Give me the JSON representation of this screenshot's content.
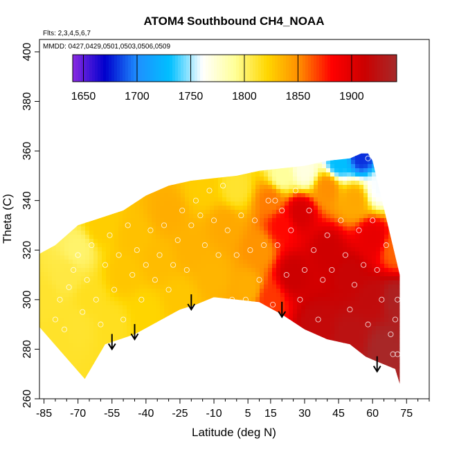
{
  "chart_data": {
    "type": "heatmap",
    "title": "ATOM4 Southbound CH4_NOAA",
    "subtitle_flights": "Flts: 2,3,4,5,6,7",
    "subtitle_dates": "MMDD: 0427,0429,0501,0503,0506,0509",
    "xlabel": "Latitude (deg N)",
    "ylabel": "Theta (C)",
    "xlim": [
      -87,
      85
    ],
    "ylim": [
      260,
      405
    ],
    "x_ticks": [
      -85,
      -70,
      -55,
      -40,
      -25,
      -10,
      5,
      15,
      30,
      45,
      60,
      75
    ],
    "x_tick_labels": [
      "-85",
      "-70",
      "-55",
      "-40",
      "-25",
      "-10",
      "5",
      "15",
      "30",
      "45",
      "60",
      "75"
    ],
    "y_ticks": [
      260,
      280,
      300,
      320,
      340,
      360,
      380,
      400
    ],
    "y_tick_labels": [
      "260",
      "280",
      "300",
      "320",
      "340",
      "360",
      "380",
      "400"
    ],
    "grid": false,
    "colorbar": {
      "range": [
        1640,
        1942
      ],
      "ticks": [
        1650,
        1700,
        1750,
        1800,
        1850,
        1900
      ],
      "tick_labels": [
        "1650",
        "1700",
        "1750",
        "1800",
        "1850",
        "1900"
      ],
      "colors": [
        "#8a2be2",
        "#0000cd",
        "#1e90ff",
        "#00bfff",
        "#ffffff",
        "#ffff99",
        "#ffd700",
        "#ff8c00",
        "#ff0000",
        "#cc0000",
        "#a52a2a"
      ],
      "placement": "top-inside"
    },
    "domain_lower_boundary": [
      [
        -67,
        268
      ],
      [
        -58,
        282
      ],
      [
        -45,
        286
      ],
      [
        -35,
        291
      ],
      [
        -25,
        296
      ],
      [
        -18,
        298
      ],
      [
        -10,
        301
      ],
      [
        0,
        300
      ],
      [
        10,
        299
      ],
      [
        20,
        294
      ],
      [
        30,
        288
      ],
      [
        40,
        284
      ],
      [
        50,
        282
      ],
      [
        57,
        277
      ],
      [
        62,
        275
      ],
      [
        70,
        272
      ],
      [
        72,
        266
      ]
    ],
    "domain_upper_boundary": [
      [
        -88,
        290
      ],
      [
        -88,
        318
      ],
      [
        -80,
        322
      ],
      [
        -70,
        330
      ],
      [
        -60,
        333
      ],
      [
        -50,
        336
      ],
      [
        -40,
        342
      ],
      [
        -30,
        346
      ],
      [
        -20,
        348
      ],
      [
        -10,
        349
      ],
      [
        0,
        350
      ],
      [
        10,
        352
      ],
      [
        20,
        353
      ],
      [
        30,
        354
      ],
      [
        40,
        356
      ],
      [
        50,
        357
      ],
      [
        55,
        359
      ],
      [
        58,
        359
      ],
      [
        60,
        356
      ],
      [
        72,
        310
      ],
      [
        72,
        266
      ]
    ],
    "field_anchors": [
      {
        "lat": -85,
        "theta": 300,
        "ch4": 1812
      },
      {
        "lat": -80,
        "theta": 285,
        "ch4": 1813
      },
      {
        "lat": -75,
        "theta": 310,
        "ch4": 1808
      },
      {
        "lat": -70,
        "theta": 290,
        "ch4": 1812
      },
      {
        "lat": -70,
        "theta": 320,
        "ch4": 1800
      },
      {
        "lat": -65,
        "theta": 300,
        "ch4": 1815
      },
      {
        "lat": -60,
        "theta": 330,
        "ch4": 1825
      },
      {
        "lat": -55,
        "theta": 290,
        "ch4": 1815
      },
      {
        "lat": -50,
        "theta": 310,
        "ch4": 1828
      },
      {
        "lat": -45,
        "theta": 325,
        "ch4": 1830
      },
      {
        "lat": -40,
        "theta": 295,
        "ch4": 1822
      },
      {
        "lat": -35,
        "theta": 315,
        "ch4": 1832
      },
      {
        "lat": -30,
        "theta": 335,
        "ch4": 1838
      },
      {
        "lat": -25,
        "theta": 300,
        "ch4": 1828
      },
      {
        "lat": -20,
        "theta": 320,
        "ch4": 1836
      },
      {
        "lat": -15,
        "theta": 345,
        "ch4": 1825
      },
      {
        "lat": -10,
        "theta": 310,
        "ch4": 1835
      },
      {
        "lat": -5,
        "theta": 330,
        "ch4": 1840
      },
      {
        "lat": 0,
        "theta": 345,
        "ch4": 1812
      },
      {
        "lat": 5,
        "theta": 305,
        "ch4": 1838
      },
      {
        "lat": 10,
        "theta": 320,
        "ch4": 1848
      },
      {
        "lat": 15,
        "theta": 300,
        "ch4": 1870
      },
      {
        "lat": 15,
        "theta": 340,
        "ch4": 1855
      },
      {
        "lat": 20,
        "theta": 330,
        "ch4": 1880
      },
      {
        "lat": 20,
        "theta": 350,
        "ch4": 1790
      },
      {
        "lat": 25,
        "theta": 310,
        "ch4": 1912
      },
      {
        "lat": 28,
        "theta": 335,
        "ch4": 1905
      },
      {
        "lat": 30,
        "theta": 352,
        "ch4": 1770
      },
      {
        "lat": 35,
        "theta": 290,
        "ch4": 1918
      },
      {
        "lat": 40,
        "theta": 320,
        "ch4": 1910
      },
      {
        "lat": 40,
        "theta": 345,
        "ch4": 1850
      },
      {
        "lat": 45,
        "theta": 355,
        "ch4": 1730
      },
      {
        "lat": 50,
        "theta": 285,
        "ch4": 1925
      },
      {
        "lat": 50,
        "theta": 310,
        "ch4": 1915
      },
      {
        "lat": 52,
        "theta": 340,
        "ch4": 1840
      },
      {
        "lat": 55,
        "theta": 358,
        "ch4": 1680
      },
      {
        "lat": 60,
        "theta": 300,
        "ch4": 1920
      },
      {
        "lat": 60,
        "theta": 325,
        "ch4": 1895
      },
      {
        "lat": 63,
        "theta": 345,
        "ch4": 1760
      },
      {
        "lat": 65,
        "theta": 280,
        "ch4": 1940
      },
      {
        "lat": 70,
        "theta": 300,
        "ch4": 1935
      },
      {
        "lat": 70,
        "theta": 320,
        "ch4": 1860
      }
    ],
    "sample_points": [
      [
        -82,
        280
      ],
      [
        -80,
        292
      ],
      [
        -78,
        300
      ],
      [
        -76,
        288
      ],
      [
        -74,
        305
      ],
      [
        -72,
        312
      ],
      [
        -70,
        318
      ],
      [
        -68,
        295
      ],
      [
        -66,
        308
      ],
      [
        -64,
        322
      ],
      [
        -62,
        300
      ],
      [
        -60,
        290
      ],
      [
        -58,
        314
      ],
      [
        -56,
        326
      ],
      [
        -54,
        304
      ],
      [
        -52,
        318
      ],
      [
        -50,
        292
      ],
      [
        -48,
        330
      ],
      [
        -46,
        310
      ],
      [
        -44,
        320
      ],
      [
        -42,
        300
      ],
      [
        -40,
        314
      ],
      [
        -38,
        328
      ],
      [
        -36,
        308
      ],
      [
        -34,
        318
      ],
      [
        -32,
        330
      ],
      [
        -30,
        304
      ],
      [
        -28,
        314
      ],
      [
        -26,
        324
      ],
      [
        -24,
        336
      ],
      [
        -22,
        312
      ],
      [
        -20,
        330
      ],
      [
        -18,
        340
      ],
      [
        -16,
        334
      ],
      [
        -14,
        322
      ],
      [
        -12,
        344
      ],
      [
        -10,
        332
      ],
      [
        -8,
        318
      ],
      [
        -6,
        346
      ],
      [
        -4,
        328
      ],
      [
        -2,
        300
      ],
      [
        0,
        318
      ],
      [
        2,
        334
      ],
      [
        4,
        300
      ],
      [
        6,
        320
      ],
      [
        8,
        332
      ],
      [
        10,
        308
      ],
      [
        12,
        322
      ],
      [
        14,
        340
      ],
      [
        16,
        298
      ],
      [
        17,
        340
      ],
      [
        18,
        322
      ],
      [
        20,
        336
      ],
      [
        22,
        310
      ],
      [
        24,
        328
      ],
      [
        26,
        344
      ],
      [
        28,
        300
      ],
      [
        30,
        312
      ],
      [
        32,
        336
      ],
      [
        34,
        320
      ],
      [
        36,
        292
      ],
      [
        38,
        308
      ],
      [
        40,
        326
      ],
      [
        42,
        312
      ],
      [
        44,
        280
      ],
      [
        46,
        332
      ],
      [
        48,
        318
      ],
      [
        50,
        296
      ],
      [
        52,
        306
      ],
      [
        54,
        328
      ],
      [
        56,
        314
      ],
      [
        58,
        290
      ],
      [
        60,
        332
      ],
      [
        62,
        312
      ],
      [
        64,
        300
      ],
      [
        66,
        322
      ],
      [
        68,
        286
      ],
      [
        69,
        278
      ],
      [
        70,
        292
      ],
      [
        71,
        278
      ],
      [
        71,
        300
      ],
      [
        58,
        357
      ]
    ],
    "arrows": [
      {
        "lat": -55,
        "theta_tip": 280
      },
      {
        "lat": -45,
        "theta_tip": 284
      },
      {
        "lat": -20,
        "theta_tip": 296
      },
      {
        "lat": 20,
        "theta_tip": 293
      },
      {
        "lat": 62,
        "theta_tip": 271
      }
    ]
  }
}
